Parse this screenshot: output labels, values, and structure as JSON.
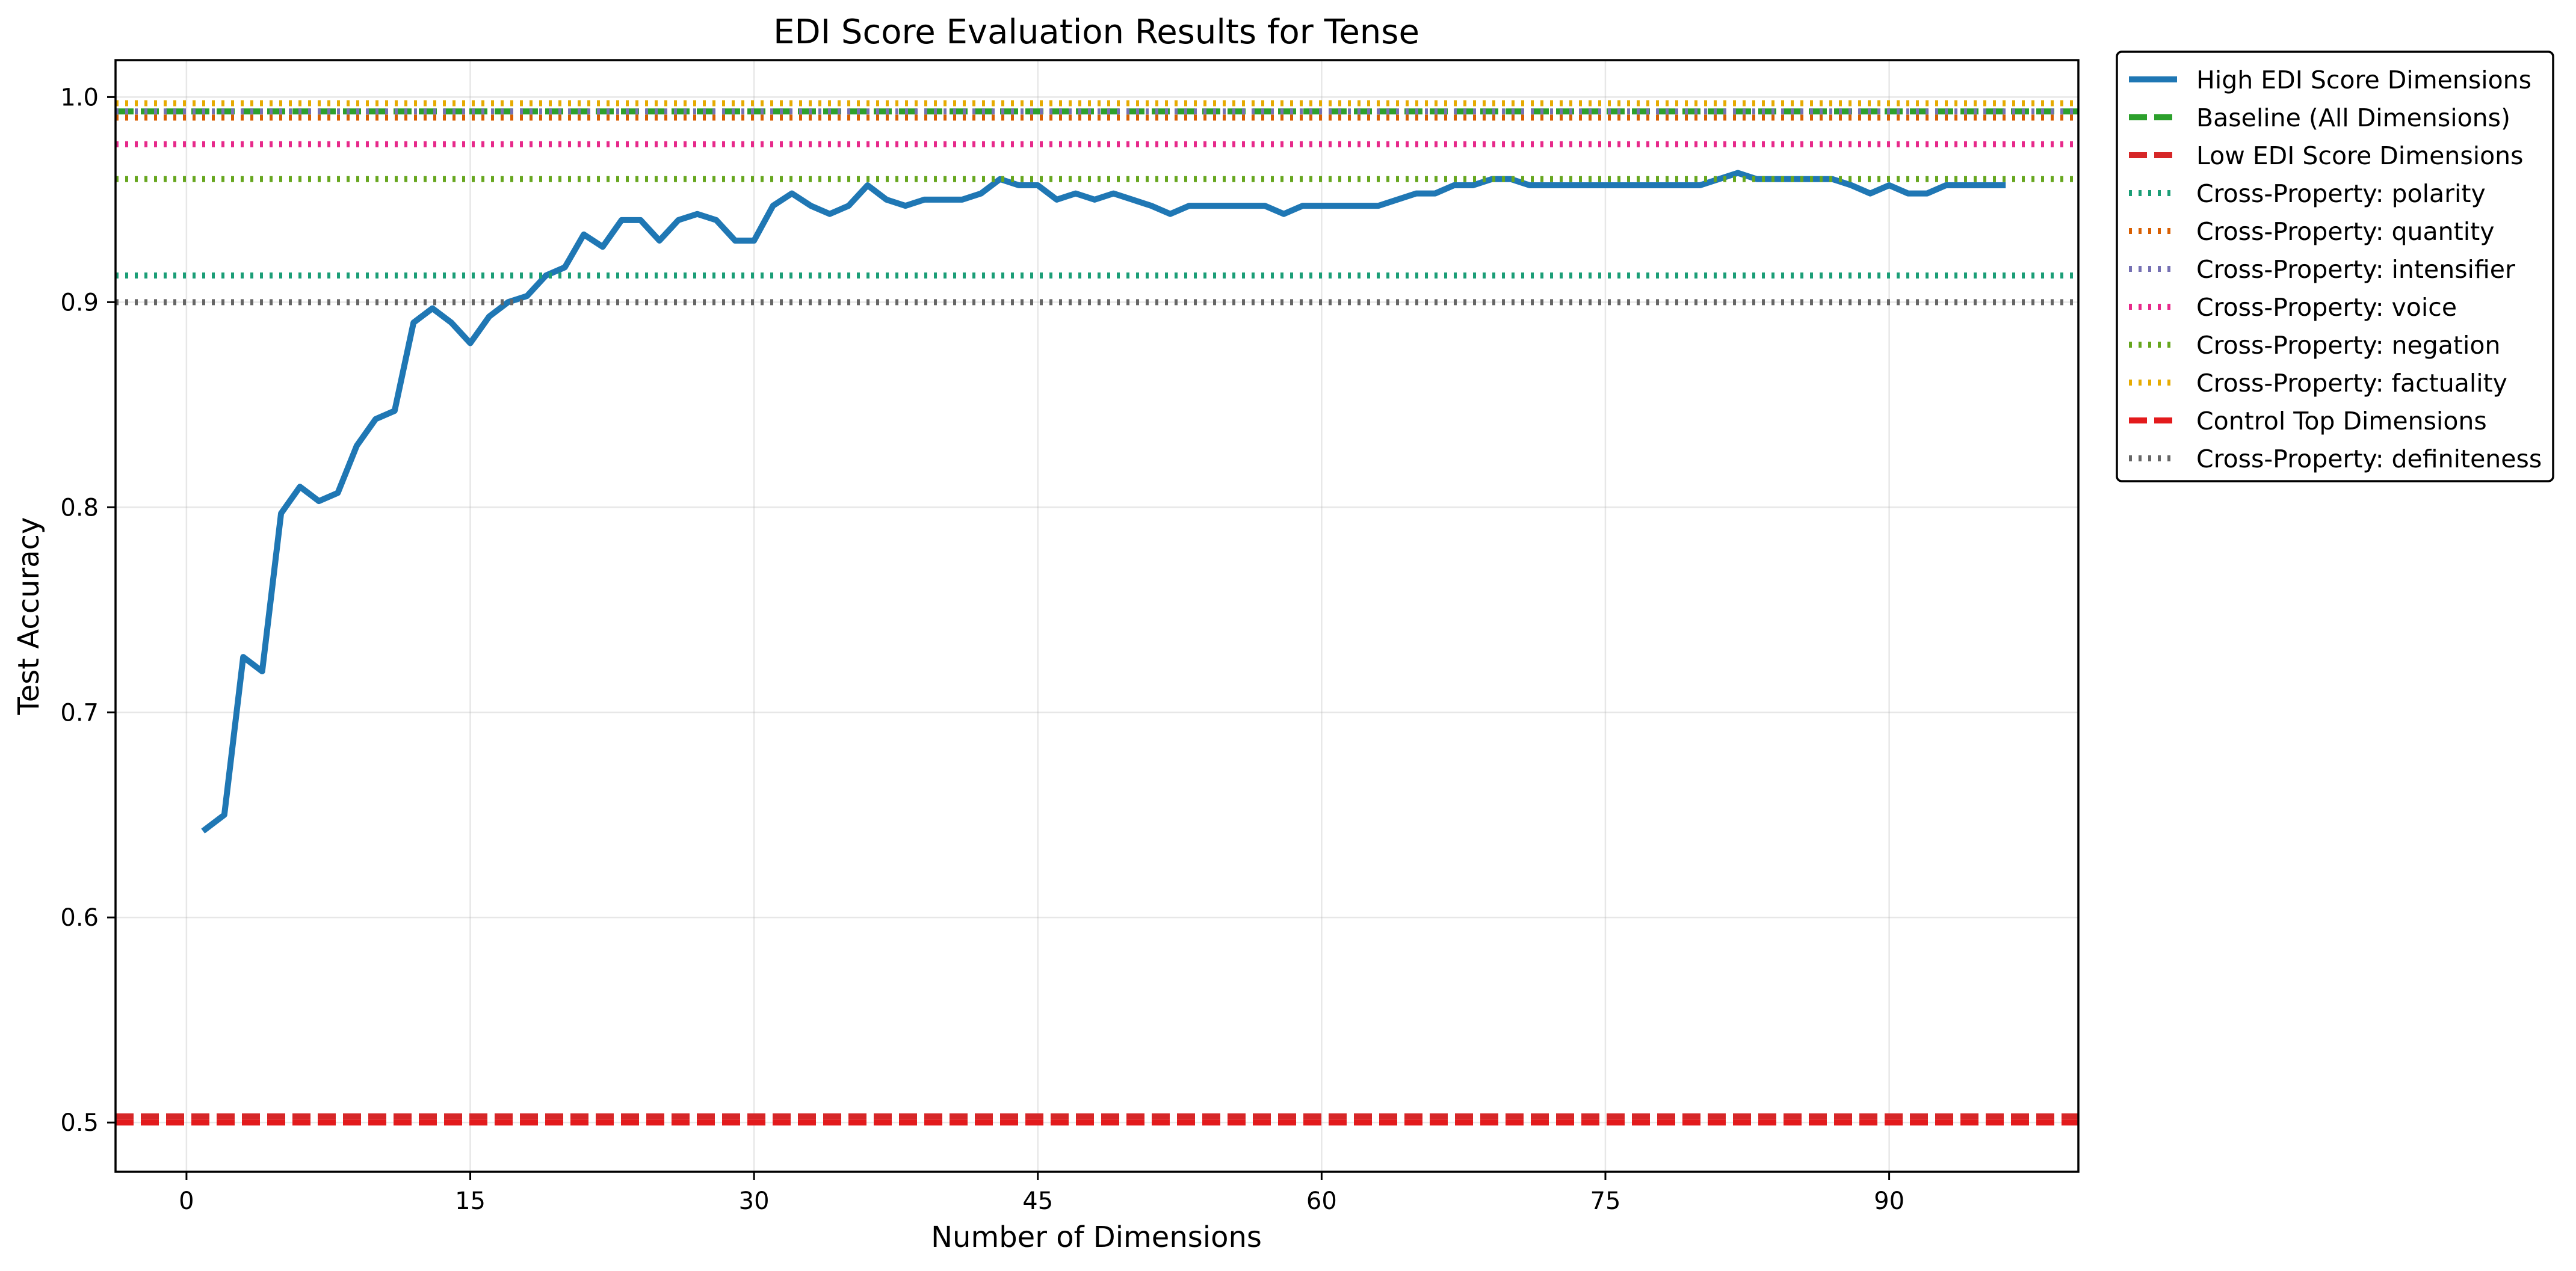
{
  "chart_data": {
    "type": "line",
    "title": "EDI Score Evaluation Results for Tense",
    "xlabel": "Number of Dimensions",
    "ylabel": "Test Accuracy",
    "xlim": [
      -3.75,
      100
    ],
    "ylim": [
      0.476,
      1.018
    ],
    "xticks": [
      0,
      15,
      30,
      45,
      60,
      75,
      90
    ],
    "yticks": [
      0.5,
      0.6,
      0.7,
      0.8,
      0.9,
      1.0
    ],
    "ytick_labels": [
      "0.5",
      "0.6",
      "0.7",
      "0.8",
      "0.9",
      "1.0"
    ],
    "grid": true,
    "legend_position": "outside-top-right",
    "series": [
      {
        "name": "High EDI Score Dimensions",
        "kind": "line",
        "style": "solid",
        "color": "#1f77b4",
        "x": [
          1,
          2,
          3,
          4,
          5,
          6,
          7,
          8,
          9,
          10,
          11,
          12,
          13,
          14,
          15,
          16,
          17,
          18,
          19,
          20,
          21,
          22,
          23,
          24,
          25,
          26,
          27,
          28,
          29,
          30,
          31,
          32,
          33,
          34,
          35,
          36,
          37,
          38,
          39,
          40,
          41,
          42,
          43,
          44,
          45,
          46,
          47,
          48,
          49,
          50,
          51,
          52,
          53,
          54,
          55,
          56,
          57,
          58,
          59,
          60,
          61,
          62,
          63,
          64,
          65,
          66,
          67,
          68,
          69,
          70,
          71,
          72,
          73,
          74,
          75,
          76,
          77,
          78,
          79,
          80,
          81,
          82,
          83,
          84,
          85,
          86,
          87,
          88,
          89,
          90,
          91,
          92,
          93,
          94,
          95,
          96
        ],
        "y": [
          0.643,
          0.65,
          0.727,
          0.72,
          0.797,
          0.81,
          0.803,
          0.807,
          0.83,
          0.843,
          0.847,
          0.89,
          0.897,
          0.89,
          0.88,
          0.893,
          0.9,
          0.903,
          0.913,
          0.917,
          0.933,
          0.927,
          0.94,
          0.94,
          0.93,
          0.94,
          0.943,
          0.94,
          0.93,
          0.93,
          0.947,
          0.953,
          0.947,
          0.943,
          0.947,
          0.957,
          0.95,
          0.947,
          0.95,
          0.95,
          0.95,
          0.953,
          0.96,
          0.957,
          0.957,
          0.95,
          0.953,
          0.95,
          0.953,
          0.95,
          0.947,
          0.943,
          0.947,
          0.947,
          0.947,
          0.947,
          0.947,
          0.943,
          0.947,
          0.947,
          0.947,
          0.947,
          0.947,
          0.95,
          0.953,
          0.953,
          0.957,
          0.957,
          0.96,
          0.96,
          0.957,
          0.957,
          0.957,
          0.957,
          0.957,
          0.957,
          0.957,
          0.957,
          0.957,
          0.957,
          0.96,
          0.963,
          0.96,
          0.96,
          0.96,
          0.96,
          0.96,
          0.957,
          0.953,
          0.957,
          0.953,
          0.953,
          0.957,
          0.957,
          0.957,
          0.957
        ]
      },
      {
        "name": "Baseline (All Dimensions)",
        "kind": "hline",
        "style": "dashed",
        "color": "#2ca02c",
        "y": 0.993
      },
      {
        "name": "Low EDI Score Dimensions",
        "kind": "hline",
        "style": "dashed",
        "color": "#d62728",
        "y": 0.503
      },
      {
        "name": "Cross-Property: polarity",
        "kind": "hline",
        "style": "dotted",
        "color": "#1b9e77",
        "y": 0.913
      },
      {
        "name": "Cross-Property: quantity",
        "kind": "hline",
        "style": "dotted",
        "color": "#d95f02",
        "y": 0.99
      },
      {
        "name": "Cross-Property: intensifier",
        "kind": "hline",
        "style": "dotted",
        "color": "#7570b3",
        "y": 0.993
      },
      {
        "name": "Cross-Property: voice",
        "kind": "hline",
        "style": "dotted",
        "color": "#e7298a",
        "y": 0.977
      },
      {
        "name": "Cross-Property: negation",
        "kind": "hline",
        "style": "dotted",
        "color": "#66a61e",
        "y": 0.96
      },
      {
        "name": "Cross-Property: factuality",
        "kind": "hline",
        "style": "dotted",
        "color": "#e6ab02",
        "y": 0.997
      },
      {
        "name": "Control Top Dimensions",
        "kind": "hline",
        "style": "dashed",
        "color": "#e31a1c",
        "y": 0.5
      },
      {
        "name": "Cross-Property: definiteness",
        "kind": "hline",
        "style": "dotted",
        "color": "#666666",
        "y": 0.9
      }
    ]
  }
}
